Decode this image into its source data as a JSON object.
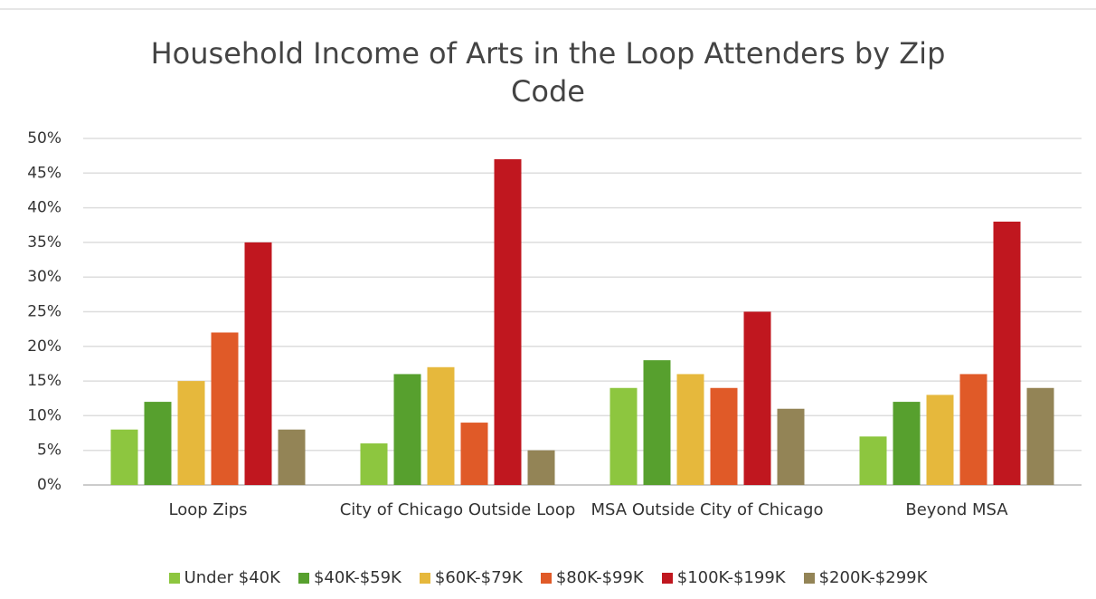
{
  "chart_data": {
    "type": "bar",
    "title": "Household Income of Arts in the Loop Attenders by Zip Code",
    "categories": [
      "Loop Zips",
      "City of Chicago Outside Loop",
      "MSA Outside City of Chicago",
      "Beyond MSA"
    ],
    "series": [
      {
        "name": "Under $40K",
        "color": "#8dc63f",
        "values": [
          8,
          6,
          14,
          7
        ]
      },
      {
        "name": "$40K-$59K",
        "color": "#57a02e",
        "values": [
          12,
          16,
          18,
          12
        ]
      },
      {
        "name": "$60K-$79K",
        "color": "#e6b83c",
        "values": [
          15,
          17,
          16,
          13
        ]
      },
      {
        "name": "$80K-$99K",
        "color": "#e05a28",
        "values": [
          22,
          9,
          14,
          16
        ]
      },
      {
        "name": "$100K-$199K",
        "color": "#c0171f",
        "values": [
          35,
          47,
          25,
          38
        ]
      },
      {
        "name": "$200K-$299K",
        "color": "#938456",
        "values": [
          8,
          5,
          11,
          14
        ]
      }
    ],
    "ylim": [
      0,
      50
    ],
    "yticks": [
      {
        "value": 0,
        "label": "0%"
      },
      {
        "value": 5,
        "label": "5%"
      },
      {
        "value": 10,
        "label": "10%"
      },
      {
        "value": 15,
        "label": "15%"
      },
      {
        "value": 20,
        "label": "20%"
      },
      {
        "value": 25,
        "label": "25%"
      },
      {
        "value": 30,
        "label": "30%"
      },
      {
        "value": 35,
        "label": "35%"
      },
      {
        "value": 40,
        "label": "40%"
      },
      {
        "value": 45,
        "label": "45%"
      },
      {
        "value": 50,
        "label": "50%"
      }
    ],
    "grid": true,
    "legend": "bottom"
  }
}
